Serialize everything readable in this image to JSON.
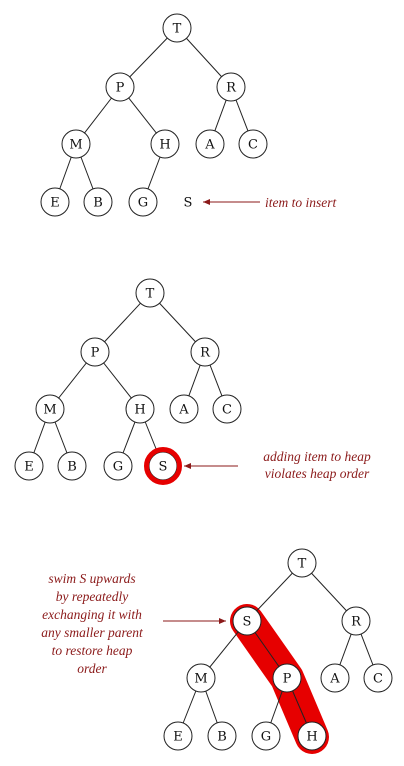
{
  "panels": [
    {
      "nodes": [
        "T",
        "P",
        "R",
        "M",
        "H",
        "A",
        "C",
        "E",
        "B",
        "G"
      ],
      "pending_item": "S",
      "note": [
        "item to insert"
      ]
    },
    {
      "nodes": [
        "T",
        "P",
        "R",
        "M",
        "H",
        "A",
        "C",
        "E",
        "B",
        "G",
        "S"
      ],
      "note": [
        "adding item to heap",
        "violates heap order"
      ]
    },
    {
      "nodes": [
        "T",
        "S",
        "R",
        "M",
        "P",
        "A",
        "C",
        "E",
        "B",
        "G",
        "H"
      ],
      "note": [
        "swim S upwards",
        "by repeatedly",
        "exchanging it with",
        "any smaller parent",
        "to restore heap",
        "order"
      ]
    }
  ],
  "colors": {
    "annotation": "#8b1a1a",
    "highlight": "#e60000",
    "node_stroke": "#222222"
  }
}
